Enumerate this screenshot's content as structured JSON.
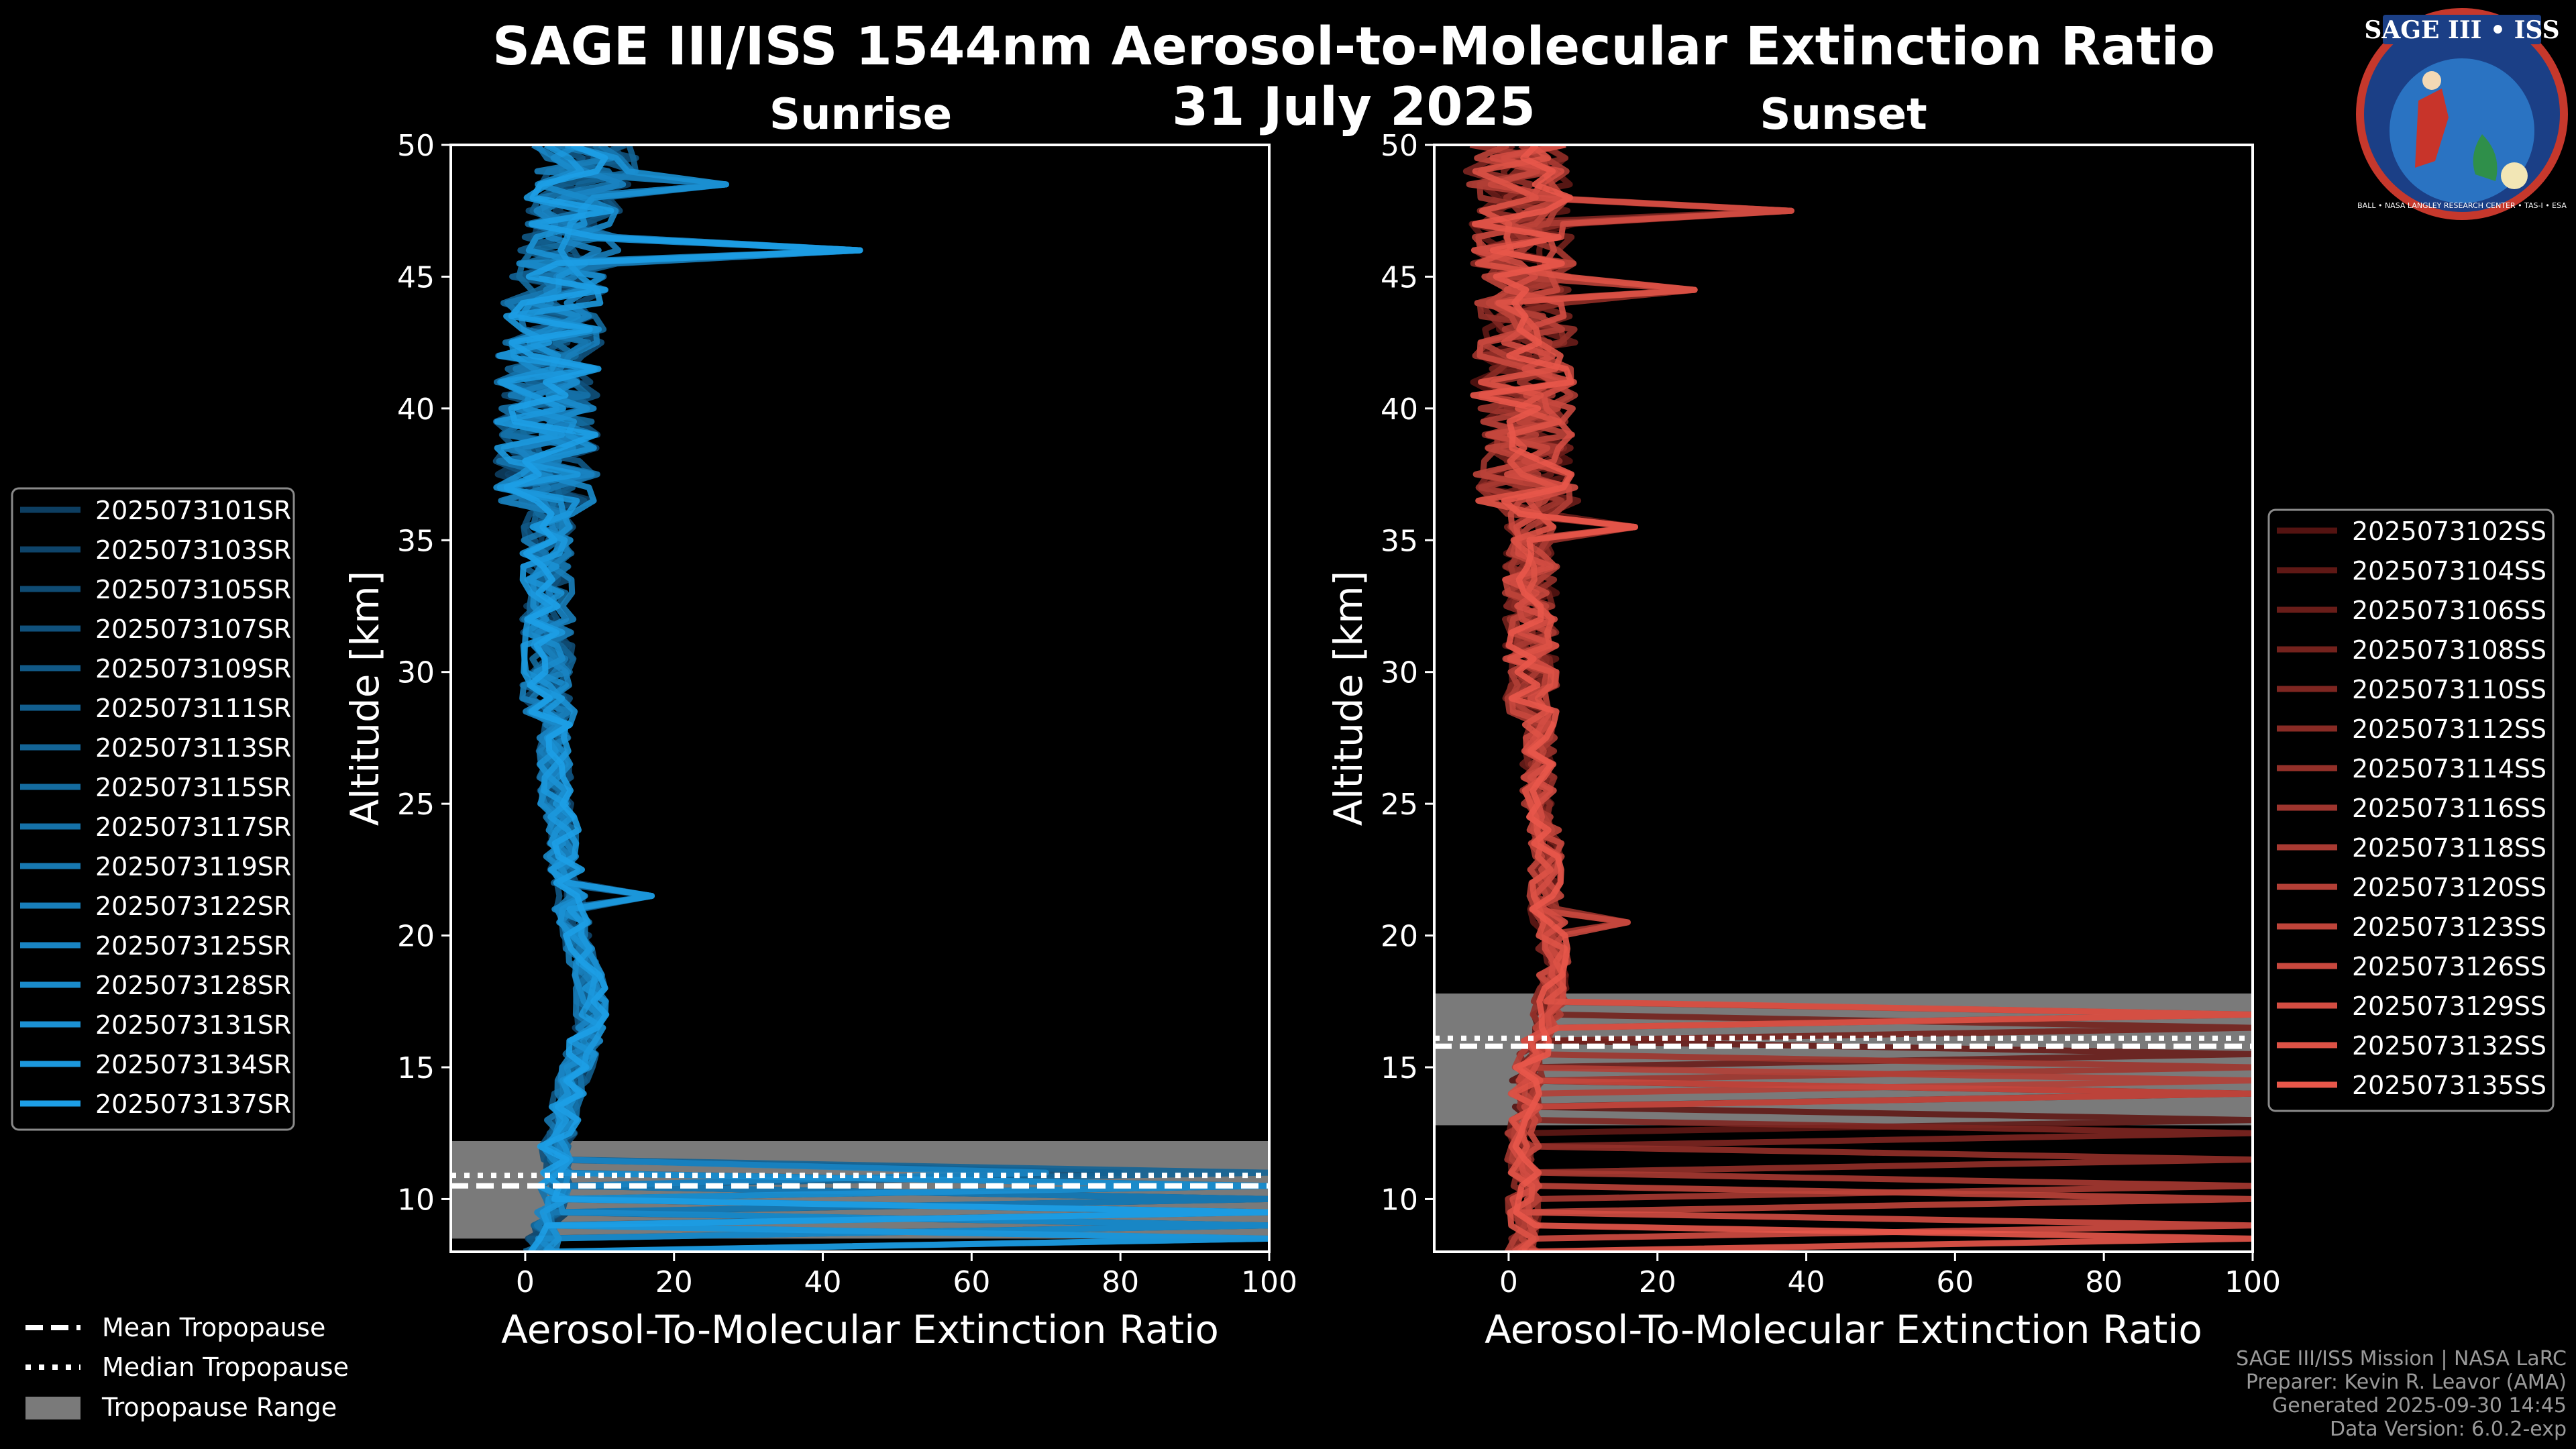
{
  "header": {
    "title": "SAGE III/ISS 1544nm Aerosol-to-Molecular Extinction Ratio",
    "date": "31 July 2025"
  },
  "logo": {
    "name": "SAGE III • ISS",
    "fine_print": "BALL • NASA LANGLEY RESEARCH CENTER • TAS-I • ESA"
  },
  "colors": {
    "background": "#000000",
    "sunrise_dark": "#0a2d4a",
    "sunrise_light": "#1d9ee6",
    "sunset_dark": "#3a0707",
    "sunset_light": "#e8574a",
    "tropopause_range": "#7a7a7a"
  },
  "chart_data": [
    {
      "type": "line",
      "id": "sunrise",
      "title": "Sunrise",
      "xlabel": "Aerosol-To-Molecular Extinction Ratio",
      "ylabel": "Altitude [km]",
      "xlim": [
        -10,
        100
      ],
      "ylim": [
        8,
        50
      ],
      "xticks": [
        0,
        20,
        40,
        60,
        80,
        100
      ],
      "yticks": [
        10,
        15,
        20,
        25,
        30,
        35,
        40,
        45,
        50
      ],
      "legend_position": "outside-left",
      "profile_altitudes_km": [
        8,
        9,
        10,
        11,
        12,
        13,
        14,
        15,
        16,
        17,
        18,
        19,
        20,
        21,
        22,
        23,
        24,
        25,
        26,
        27,
        28,
        29,
        30,
        31,
        32,
        33,
        34,
        35,
        36,
        37,
        38,
        39,
        40,
        41,
        42,
        43,
        44,
        45,
        46,
        47,
        48,
        49,
        50
      ],
      "base_profile": [
        2,
        3,
        4,
        4,
        4,
        5,
        6,
        7,
        8,
        9,
        9,
        8,
        7,
        6,
        6,
        5,
        5,
        4,
        4,
        4,
        4,
        3,
        3,
        3,
        3,
        3,
        3,
        3,
        3,
        3,
        3,
        3,
        3,
        3,
        3,
        4,
        4,
        5,
        6,
        7,
        7,
        8,
        8
      ],
      "tropopause": {
        "mean_km": 10.5,
        "median_km": 10.9,
        "range_km": [
          8.5,
          12.2
        ]
      },
      "series": [
        {
          "name": "2025073101SR",
          "low_spike_km": 10.0,
          "low_spike_value": 100
        },
        {
          "name": "2025073103SR",
          "low_spike_km": 10.4,
          "low_spike_value": 100
        },
        {
          "name": "2025073105SR",
          "low_spike_km": 9.6,
          "low_spike_value": 100
        },
        {
          "name": "2025073107SR",
          "low_spike_km": 11.0,
          "low_spike_value": 80
        },
        {
          "name": "2025073109SR",
          "low_spike_km": 9.2,
          "low_spike_value": 100
        },
        {
          "name": "2025073111SR",
          "low_spike_km": 8.8,
          "low_spike_value": 100
        },
        {
          "name": "2025073113SR",
          "low_spike_km": 10.8,
          "low_spike_value": 100
        },
        {
          "name": "2025073115SR",
          "low_spike_km": 9.9,
          "low_spike_value": 100
        },
        {
          "name": "2025073117SR",
          "low_spike_km": 8.6,
          "low_spike_value": 100
        },
        {
          "name": "2025073119SR",
          "low_spike_km": 10.2,
          "low_spike_value": 100
        },
        {
          "name": "2025073122SR",
          "low_spike_km": 9.4,
          "low_spike_value": 100
        },
        {
          "name": "2025073125SR",
          "low_spike_km": 11.1,
          "low_spike_value": 70
        },
        {
          "name": "2025073128SR",
          "low_spike_km": 9.0,
          "low_spike_value": 100
        },
        {
          "name": "2025073131SR",
          "low_spike_km": 10.6,
          "low_spike_value": 100
        },
        {
          "name": "2025073134SR",
          "low_spike_km": 8.4,
          "low_spike_value": 100
        },
        {
          "name": "2025073137SR",
          "low_spike_km": 9.7,
          "low_spike_value": 100
        }
      ],
      "peaks": [
        {
          "alt_km": 46,
          "value": 45
        },
        {
          "alt_km": 48.5,
          "value": 27
        },
        {
          "alt_km": 21.5,
          "value": 17
        }
      ]
    },
    {
      "type": "line",
      "id": "sunset",
      "title": "Sunset",
      "xlabel": "Aerosol-To-Molecular Extinction Ratio",
      "ylabel": "Altitude [km]",
      "xlim": [
        -10,
        100
      ],
      "ylim": [
        8,
        50
      ],
      "xticks": [
        0,
        20,
        40,
        60,
        80,
        100
      ],
      "yticks": [
        10,
        15,
        20,
        25,
        30,
        35,
        40,
        45,
        50
      ],
      "legend_position": "outside-right",
      "profile_altitudes_km": [
        8,
        9,
        10,
        11,
        12,
        13,
        14,
        15,
        16,
        17,
        18,
        19,
        20,
        21,
        22,
        23,
        24,
        25,
        26,
        27,
        28,
        29,
        30,
        31,
        32,
        33,
        34,
        35,
        36,
        37,
        38,
        39,
        40,
        41,
        42,
        43,
        44,
        45,
        46,
        47,
        48,
        49,
        50
      ],
      "base_profile": [
        2,
        2,
        2,
        2,
        2,
        2,
        2,
        3,
        4,
        5,
        6,
        6,
        6,
        5,
        5,
        5,
        5,
        4,
        4,
        4,
        4,
        3,
        3,
        3,
        3,
        3,
        3,
        3,
        3,
        2,
        2,
        2,
        2,
        2,
        2,
        2,
        2,
        2,
        2,
        2,
        2,
        1,
        1
      ],
      "tropopause": {
        "mean_km": 15.8,
        "median_km": 16.1,
        "range_km": [
          12.8,
          17.8
        ]
      },
      "series": [
        {
          "name": "2025073102SS",
          "low_spike_km": 14.0,
          "low_spike_value": 100
        },
        {
          "name": "2025073104SS",
          "low_spike_km": 13.2,
          "low_spike_value": 100
        },
        {
          "name": "2025073106SS",
          "low_spike_km": 15.5,
          "low_spike_value": 100
        },
        {
          "name": "2025073108SS",
          "low_spike_km": 16.6,
          "low_spike_value": 100
        },
        {
          "name": "2025073110SS",
          "low_spike_km": 12.6,
          "low_spike_value": 100
        },
        {
          "name": "2025073112SS",
          "low_spike_km": 17.2,
          "low_spike_value": 100
        },
        {
          "name": "2025073114SS",
          "low_spike_km": 11.4,
          "low_spike_value": 100
        },
        {
          "name": "2025073116SS",
          "low_spike_km": 15.0,
          "low_spike_value": 100
        },
        {
          "name": "2025073118SS",
          "low_spike_km": 10.6,
          "low_spike_value": 100
        },
        {
          "name": "2025073120SS",
          "low_spike_km": 14.6,
          "low_spike_value": 100
        },
        {
          "name": "2025073123SS",
          "low_spike_km": 9.8,
          "low_spike_value": 100
        },
        {
          "name": "2025073126SS",
          "low_spike_km": 13.8,
          "low_spike_value": 100
        },
        {
          "name": "2025073129SS",
          "low_spike_km": 8.9,
          "low_spike_value": 100
        },
        {
          "name": "2025073132SS",
          "low_spike_km": 16.9,
          "low_spike_value": 100
        },
        {
          "name": "2025073135SS",
          "low_spike_km": 8.3,
          "low_spike_value": 100
        }
      ],
      "peaks": [
        {
          "alt_km": 47.5,
          "value": 38
        },
        {
          "alt_km": 44.5,
          "value": 25
        },
        {
          "alt_km": 35.5,
          "value": 17
        },
        {
          "alt_km": 20.5,
          "value": 16
        }
      ]
    }
  ],
  "shared_legend": {
    "mean_label": "Mean Tropopause",
    "median_label": "Median Tropopause",
    "range_label": "Tropopause Range"
  },
  "footer": {
    "line1": "SAGE III/ISS Mission | NASA LaRC",
    "line2": "Preparer: Kevin R. Leavor (AMA)",
    "line3": "Generated 2025-09-30 14:45",
    "line4": "Data Version: 6.0.2-exp"
  }
}
